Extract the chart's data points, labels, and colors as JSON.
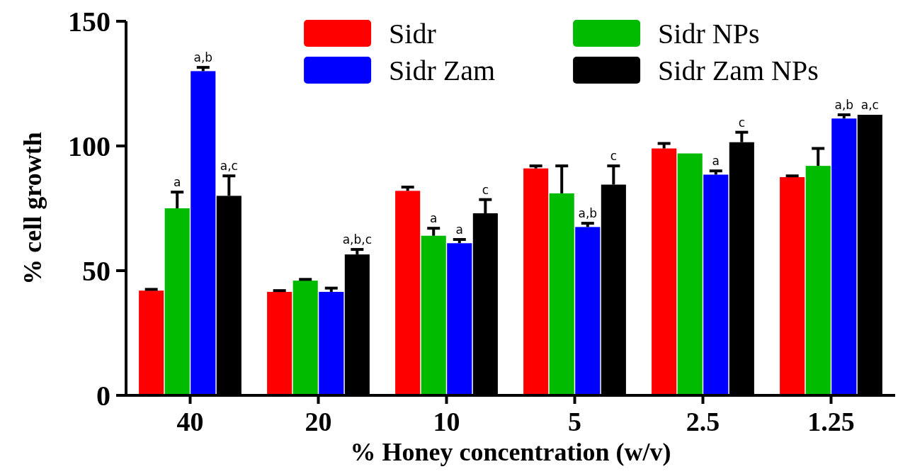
{
  "chart_data": {
    "type": "bar",
    "xlabel": "% Honey concentration (w/v)",
    "ylabel": "% cell growth",
    "categories": [
      "40",
      "20",
      "10",
      "5",
      "2.5",
      "1.25"
    ],
    "ylim": [
      0,
      150
    ],
    "yticks": [
      0,
      50,
      100,
      150
    ],
    "legend": "top",
    "series": [
      {
        "name": "Sidr",
        "color": "#ff0000",
        "values": [
          42,
          41.5,
          82,
          91,
          99,
          87.5
        ],
        "errors": [
          [
            42,
            42.5
          ],
          [
            41.5,
            42
          ],
          [
            82,
            83.5
          ],
          [
            91,
            92
          ],
          [
            99,
            101
          ],
          [
            87.5,
            88
          ]
        ],
        "value_labels": [
          null,
          null,
          null,
          null,
          null,
          null
        ]
      },
      {
        "name": "Sidr NPs",
        "color": "#00bb00",
        "values": [
          75,
          46,
          64,
          81,
          97,
          92
        ],
        "errors": [
          [
            75,
            81.5
          ],
          [
            46,
            46.5
          ],
          [
            64,
            67
          ],
          [
            81,
            92
          ],
          null,
          [
            92,
            99
          ]
        ],
        "value_labels": [
          "a",
          null,
          "a",
          null,
          null,
          null
        ]
      },
      {
        "name": "Sidr Zam",
        "color": "#0000ff",
        "values": [
          130,
          41.5,
          61,
          67.5,
          88.5,
          111
        ],
        "errors": [
          [
            130,
            131.5
          ],
          [
            41.5,
            43
          ],
          [
            61,
            62.5
          ],
          [
            67.5,
            69
          ],
          [
            88.5,
            90
          ],
          [
            111,
            112.5
          ]
        ],
        "value_labels": [
          "a,b",
          null,
          "a",
          "a,b",
          "a",
          "a,b"
        ]
      },
      {
        "name": "Sidr Zam NPs",
        "color": "#000000",
        "values": [
          80,
          56.5,
          73,
          84.5,
          101.5,
          112.5
        ],
        "errors": [
          [
            80,
            88
          ],
          [
            56.5,
            58.5
          ],
          [
            73,
            78.5
          ],
          [
            84.5,
            92
          ],
          [
            101.5,
            105.5
          ],
          null
        ],
        "value_labels": [
          "a,c",
          "a,b,c",
          "c",
          "c",
          "c",
          "a,c"
        ]
      }
    ]
  }
}
